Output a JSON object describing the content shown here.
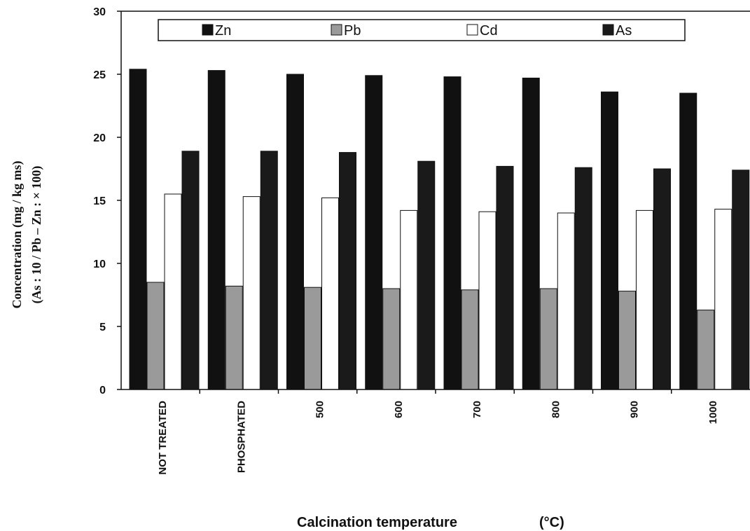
{
  "chart_data": {
    "type": "bar",
    "categories": [
      "NOT TREATED",
      "PHOSPHATED",
      "500",
      "600",
      "700",
      "800",
      "900",
      "1000"
    ],
    "series": [
      {
        "name": "Zn",
        "values": [
          25.4,
          25.3,
          25.0,
          24.9,
          24.8,
          24.7,
          23.6,
          23.5
        ]
      },
      {
        "name": "Pb",
        "values": [
          8.5,
          8.2,
          8.1,
          8.0,
          7.9,
          8.0,
          7.8,
          6.3
        ]
      },
      {
        "name": "Cd",
        "values": [
          15.5,
          15.3,
          15.2,
          14.2,
          14.1,
          14.0,
          14.2,
          14.3
        ]
      },
      {
        "name": "As",
        "values": [
          18.9,
          18.9,
          18.8,
          18.1,
          17.7,
          17.6,
          17.5,
          17.4
        ]
      }
    ],
    "colors": {
      "Zn": "#111111",
      "Pb": "#9a9a9a",
      "Cd": "#ffffff",
      "As": "#1a1a1a"
    },
    "ylim": [
      0,
      30
    ],
    "yticks": [
      0,
      5,
      10,
      15,
      20,
      25,
      30
    ],
    "xlabel": "Calcination temperature",
    "xlabel_unit": "(°C)",
    "ylabel_line1": "Concentration (mg / kg ms)",
    "ylabel_line2": "(As : 10 / Pb – Zn : × 100)",
    "legend_position": "top",
    "grid": false
  }
}
